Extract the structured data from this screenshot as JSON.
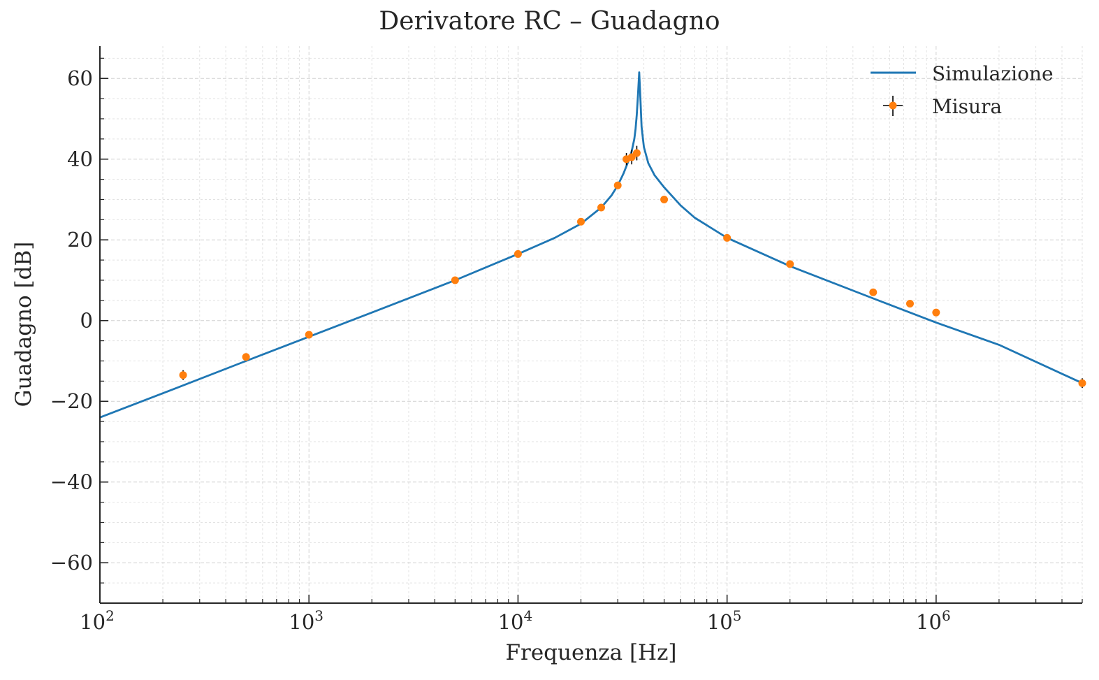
{
  "chart_data": {
    "type": "line",
    "title": "Derivatore RC – Guadagno",
    "xlabel": "Frequenza [Hz]",
    "ylabel": "Guadagno [dB]",
    "xscale": "log",
    "xlim": [
      100,
      5000000
    ],
    "ylim": [
      -70,
      68
    ],
    "x_ticks": [
      {
        "value": 100,
        "base": "10",
        "exp": "2"
      },
      {
        "value": 1000,
        "base": "10",
        "exp": "3"
      },
      {
        "value": 10000,
        "base": "10",
        "exp": "4"
      },
      {
        "value": 100000,
        "base": "10",
        "exp": "5"
      },
      {
        "value": 1000000,
        "base": "10",
        "exp": "6"
      }
    ],
    "y_ticks": [
      {
        "value": 60,
        "label": "60"
      },
      {
        "value": 40,
        "label": "40"
      },
      {
        "value": 20,
        "label": "20"
      },
      {
        "value": 0,
        "label": "0"
      },
      {
        "value": -20,
        "label": "−20"
      },
      {
        "value": -40,
        "label": "−40"
      },
      {
        "value": -60,
        "label": "−60"
      }
    ],
    "grid": true,
    "legend_position": "top-right",
    "series": [
      {
        "name": "Simulazione",
        "kind": "line",
        "color": "#1f77b4",
        "x": [
          100,
          200,
          500,
          1000,
          2000,
          5000,
          10000,
          15000,
          20000,
          25000,
          28000,
          30000,
          32000,
          34000,
          35000,
          36000,
          36500,
          37000,
          37500,
          38000,
          38500,
          39000,
          40000,
          42000,
          45000,
          50000,
          60000,
          70000,
          100000,
          200000,
          500000,
          1000000,
          2000000,
          5000000
        ],
        "y": [
          -24,
          -18,
          -10,
          -4,
          2,
          10,
          16.5,
          20.5,
          24,
          28,
          31,
          33.5,
          36.5,
          40,
          42,
          45,
          47.5,
          51,
          56,
          61.5,
          55,
          48,
          43,
          39,
          36,
          33,
          28.5,
          25.5,
          20.5,
          13.5,
          5.5,
          -0.5,
          -6,
          -15.5
        ]
      },
      {
        "name": "Misura",
        "kind": "errorbar",
        "color": "#ff7f0e",
        "errcolor": "#000000",
        "x": [
          250,
          500,
          1000,
          5000,
          10000,
          20000,
          25000,
          30000,
          33000,
          35000,
          37000,
          50000,
          100000,
          200000,
          500000,
          750000,
          1000000,
          5000000
        ],
        "y": [
          -13.5,
          -9,
          -3.5,
          10,
          16.5,
          24.5,
          28,
          33.5,
          40,
          40.5,
          41.5,
          30,
          20.5,
          14,
          7,
          4.2,
          2,
          -15.5
        ],
        "yerr": [
          1.2,
          0.6,
          0.4,
          0.4,
          0.4,
          0.5,
          0.6,
          0.8,
          1.5,
          1.8,
          1.8,
          0.8,
          0.4,
          0.4,
          0.4,
          0.4,
          0.4,
          1.2
        ]
      }
    ]
  }
}
